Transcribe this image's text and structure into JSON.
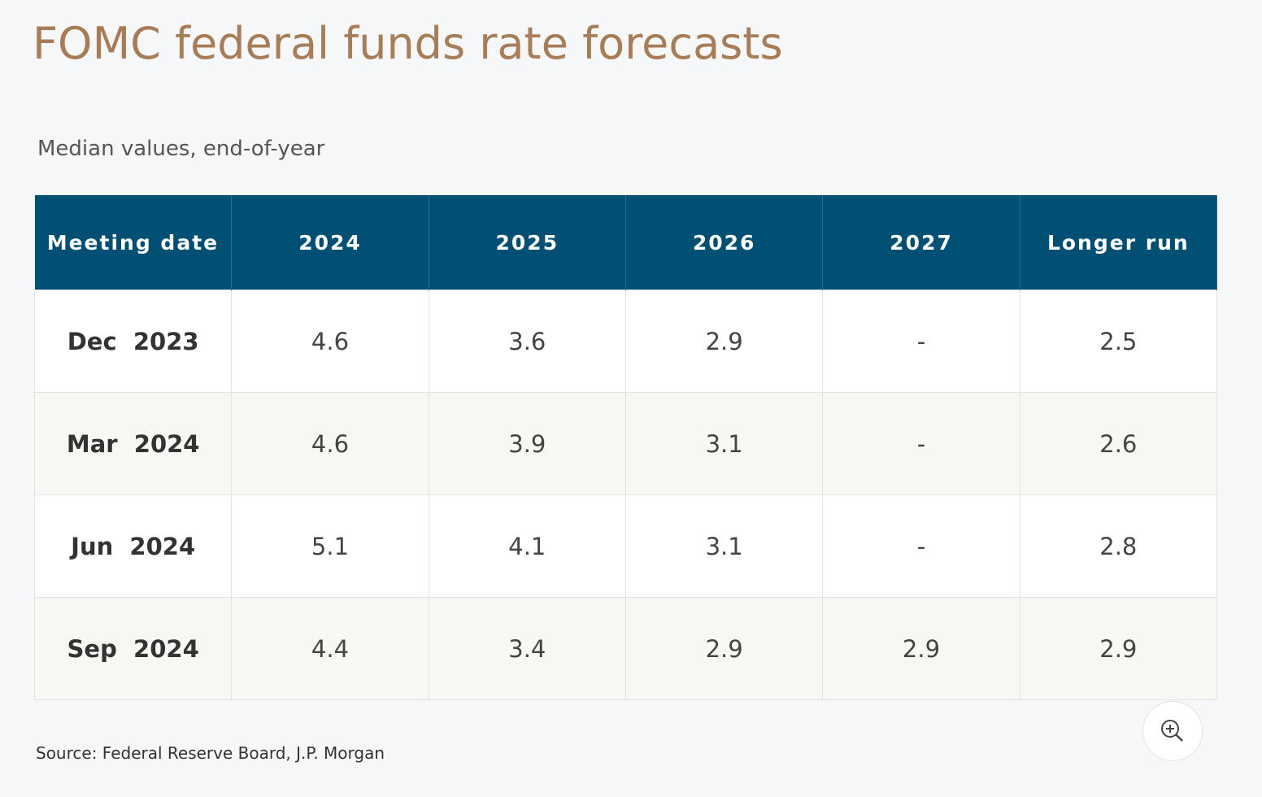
{
  "title": "FOMC federal funds rate forecasts",
  "subtitle": "Median values, end-of-year",
  "table": {
    "header": [
      "Meeting date",
      "2024",
      "2025",
      "2026",
      "2027",
      "Longer run"
    ],
    "rows": [
      [
        "Dec  2023",
        "4.6",
        "3.6",
        "2.9",
        "-",
        "2.5"
      ],
      [
        "Mar  2024",
        "4.6",
        "3.9",
        "3.1",
        "-",
        "2.6"
      ],
      [
        "Jun  2024",
        "5.1",
        "4.1",
        "3.1",
        "-",
        "2.8"
      ],
      [
        "Sep  2024",
        "4.4",
        "3.4",
        "2.9",
        "2.9",
        "2.9"
      ]
    ]
  },
  "source": "Source: Federal Reserve Board, J.P. Morgan"
}
